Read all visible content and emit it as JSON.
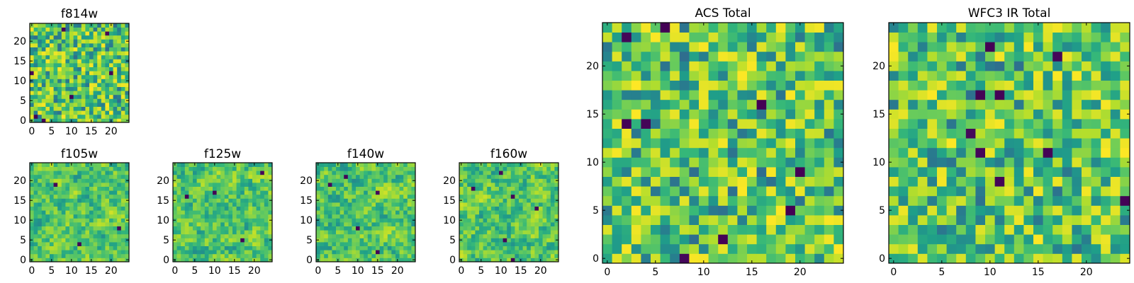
{
  "figure": {
    "colormap": "viridis",
    "colors": {
      "low": "#440154",
      "mid": "#21918c",
      "high": "#fde725",
      "frame": "#000000",
      "background": "#ffffff"
    }
  },
  "chart_data": [
    {
      "id": "f814w",
      "type": "heatmap",
      "title": "f814w",
      "grid_size": 25,
      "seed": 814,
      "dark_pixels": 7,
      "smooth": 0,
      "xlim": [
        -0.5,
        24.5
      ],
      "ylim": [
        -0.5,
        24.5
      ],
      "xticks": [
        "0",
        "5",
        "10",
        "15",
        "20"
      ],
      "yticks": [
        "0",
        "5",
        "10",
        "15",
        "20"
      ]
    },
    {
      "id": "f105w",
      "type": "heatmap",
      "title": "f105w",
      "grid_size": 25,
      "seed": 105,
      "dark_pixels": 3,
      "smooth": 1,
      "xlim": [
        -0.5,
        24.5
      ],
      "ylim": [
        -0.5,
        24.5
      ],
      "xticks": [
        "0",
        "5",
        "10",
        "15",
        "20"
      ],
      "yticks": [
        "0",
        "5",
        "10",
        "15",
        "20"
      ]
    },
    {
      "id": "f125w",
      "type": "heatmap",
      "title": "f125w",
      "grid_size": 25,
      "seed": 125,
      "dark_pixels": 4,
      "smooth": 1,
      "xlim": [
        -0.5,
        24.5
      ],
      "ylim": [
        -0.5,
        24.5
      ],
      "xticks": [
        "0",
        "5",
        "10",
        "15",
        "20"
      ],
      "yticks": [
        "0",
        "5",
        "10",
        "15",
        "20"
      ]
    },
    {
      "id": "f140w",
      "type": "heatmap",
      "title": "f140w",
      "grid_size": 25,
      "seed": 140,
      "dark_pixels": 5,
      "smooth": 1,
      "xlim": [
        -0.5,
        24.5
      ],
      "ylim": [
        -0.5,
        24.5
      ],
      "xticks": [
        "0",
        "5",
        "10",
        "15",
        "20"
      ],
      "yticks": [
        "0",
        "5",
        "10",
        "15",
        "20"
      ]
    },
    {
      "id": "f160w",
      "type": "heatmap",
      "title": "f160w",
      "grid_size": 25,
      "seed": 160,
      "dark_pixels": 6,
      "smooth": 1,
      "xlim": [
        -0.5,
        24.5
      ],
      "ylim": [
        -0.5,
        24.5
      ],
      "xticks": [
        "0",
        "5",
        "10",
        "15",
        "20"
      ],
      "yticks": [
        "0",
        "5",
        "10",
        "15",
        "20"
      ]
    },
    {
      "id": "acs-total",
      "type": "heatmap",
      "title": "ACS Total",
      "grid_size": 25,
      "seed": 7,
      "dark_pixels": 9,
      "smooth": 0,
      "xlim": [
        -0.5,
        24.5
      ],
      "ylim": [
        -0.5,
        24.5
      ],
      "xticks": [
        "0",
        "5",
        "10",
        "15",
        "20"
      ],
      "yticks": [
        "0",
        "5",
        "10",
        "15",
        "20"
      ]
    },
    {
      "id": "wfc3-ir-total",
      "type": "heatmap",
      "title": "WFC3 IR Total",
      "grid_size": 25,
      "seed": 33,
      "dark_pixels": 9,
      "smooth": 0,
      "xlim": [
        -0.5,
        24.5
      ],
      "ylim": [
        -0.5,
        24.5
      ],
      "xticks": [
        "0",
        "5",
        "10",
        "15",
        "20"
      ],
      "yticks": [
        "0",
        "5",
        "10",
        "15",
        "20"
      ]
    }
  ]
}
